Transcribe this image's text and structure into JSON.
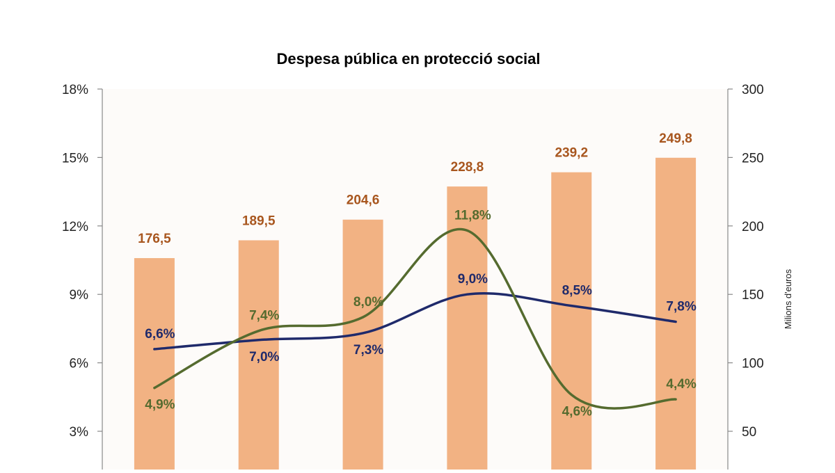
{
  "chart_data": {
    "type": "bar",
    "title": "Despesa pública en protecció social",
    "categories": [
      "",
      "",
      "",
      "",
      "",
      ""
    ],
    "bars": {
      "values": [
        176.5,
        189.5,
        204.6,
        228.8,
        239.2,
        249.8
      ],
      "labels": [
        "176,5",
        "189,5",
        "204,6",
        "228,8",
        "239,2",
        "249,8"
      ],
      "color": "#F2B283",
      "label_color": "#A8561E"
    },
    "lines": [
      {
        "values": [
          6.6,
          7.0,
          7.3,
          9.0,
          8.5,
          7.8
        ],
        "labels": [
          "6,6%",
          "7,0%",
          "7,3%",
          "9,0%",
          "8,5%",
          "7,8%"
        ],
        "color": "#1F2A6B"
      },
      {
        "values": [
          4.9,
          7.4,
          8.0,
          11.8,
          4.6,
          4.4
        ],
        "labels": [
          "4,9%",
          "7,4%",
          "8,0%",
          "11,8%",
          "4,6%",
          "4,4%"
        ],
        "color": "#556B2F"
      }
    ],
    "y_left": {
      "ticks": [
        3,
        6,
        9,
        12,
        15,
        18
      ],
      "tick_labels": [
        "3%",
        "6%",
        "9%",
        "12%",
        "15%",
        "18%"
      ],
      "range": [
        0,
        18
      ]
    },
    "y_right": {
      "label": "Milions d'euros",
      "ticks": [
        50,
        100,
        150,
        200,
        250,
        300
      ],
      "tick_labels": [
        "50",
        "100",
        "150",
        "200",
        "250",
        "300"
      ],
      "range": [
        0,
        300
      ]
    },
    "grid": false,
    "legend": "none"
  }
}
